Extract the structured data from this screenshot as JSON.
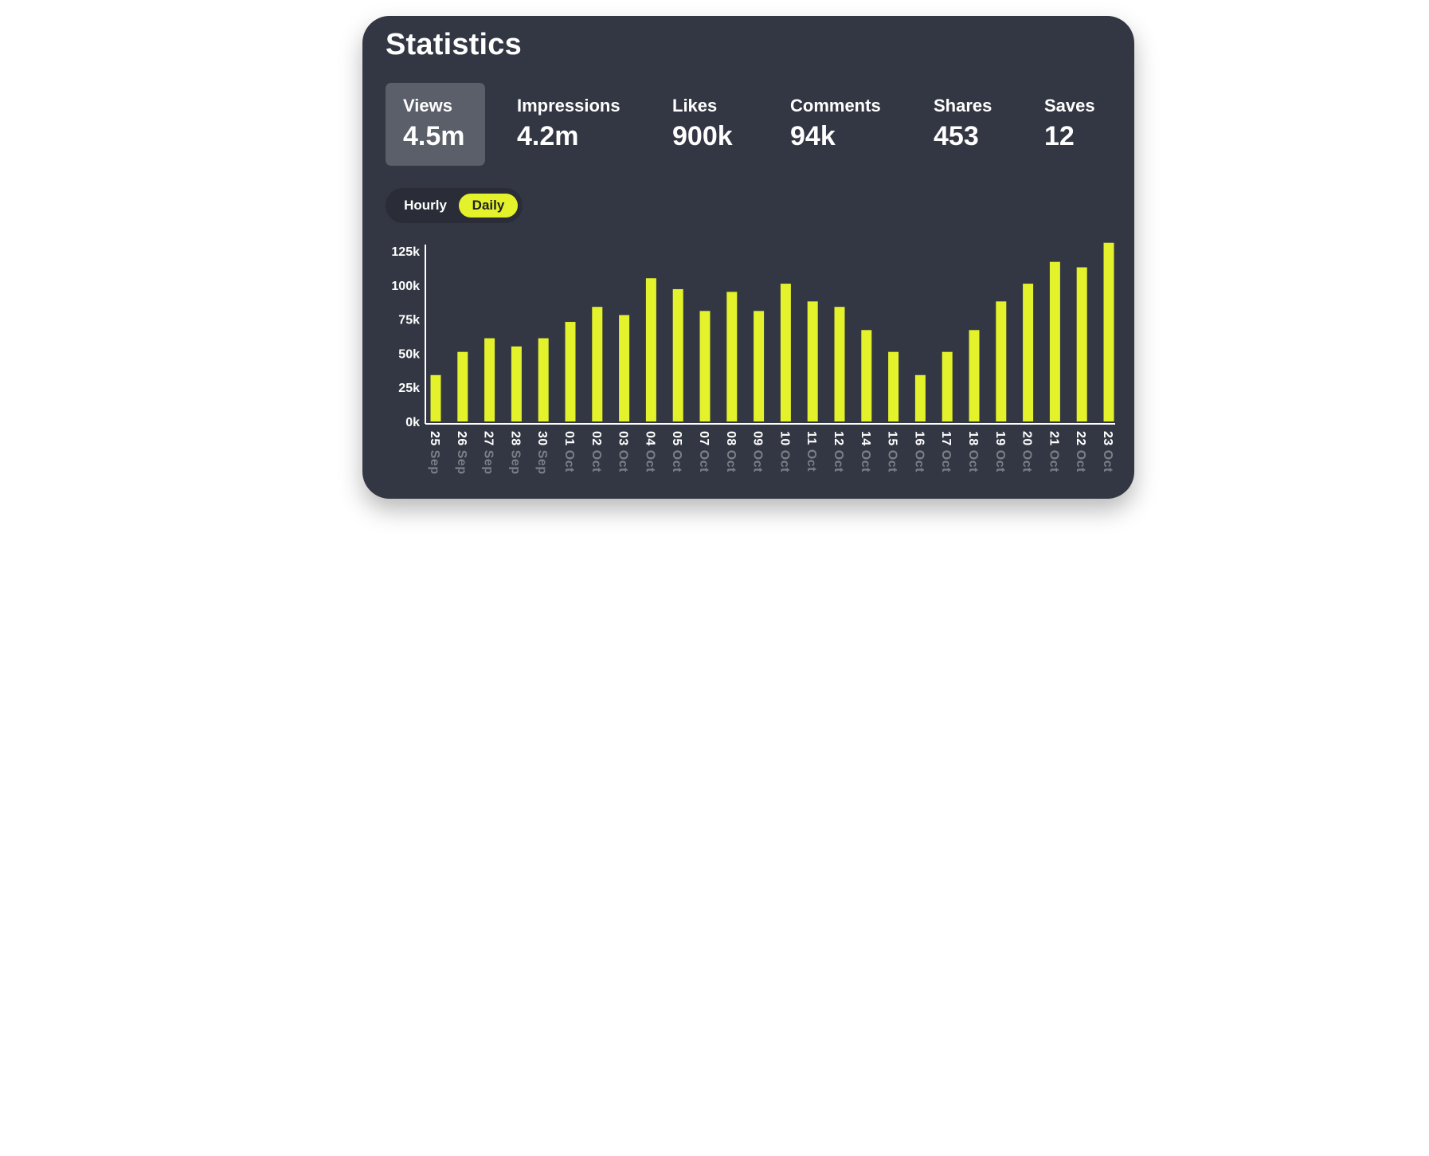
{
  "card": {
    "title": "Statistics"
  },
  "metrics": [
    {
      "label": "Views",
      "value": "4.5m",
      "active": true
    },
    {
      "label": "Impressions",
      "value": "4.2m",
      "active": false
    },
    {
      "label": "Likes",
      "value": "900k",
      "active": false
    },
    {
      "label": "Comments",
      "value": "94k",
      "active": false
    },
    {
      "label": "Shares",
      "value": "453",
      "active": false
    },
    {
      "label": "Saves",
      "value": "12",
      "active": false
    }
  ],
  "toggle": {
    "options": [
      "Hourly",
      "Daily"
    ],
    "selected": "Daily"
  },
  "colors": {
    "card_background": "#333743",
    "bar": "#e3f22a",
    "active_metric": "#5b5f6a",
    "month_label": "#7b7f88"
  },
  "chart_data": {
    "type": "bar",
    "categories": [
      {
        "day": "25",
        "month": "Sep"
      },
      {
        "day": "26",
        "month": "Sep"
      },
      {
        "day": "27",
        "month": "Sep"
      },
      {
        "day": "28",
        "month": "Sep"
      },
      {
        "day": "30",
        "month": "Sep"
      },
      {
        "day": "01",
        "month": "Oct"
      },
      {
        "day": "02",
        "month": "Oct"
      },
      {
        "day": "03",
        "month": "Oct"
      },
      {
        "day": "04",
        "month": "Oct"
      },
      {
        "day": "05",
        "month": "Oct"
      },
      {
        "day": "07",
        "month": "Oct"
      },
      {
        "day": "08",
        "month": "Oct"
      },
      {
        "day": "09",
        "month": "Oct"
      },
      {
        "day": "10",
        "month": "Oct"
      },
      {
        "day": "11",
        "month": "Oct"
      },
      {
        "day": "12",
        "month": "Oct"
      },
      {
        "day": "14",
        "month": "Oct"
      },
      {
        "day": "15",
        "month": "Oct"
      },
      {
        "day": "16",
        "month": "Oct"
      },
      {
        "day": "17",
        "month": "Oct"
      },
      {
        "day": "18",
        "month": "Oct"
      },
      {
        "day": "19",
        "month": "Oct"
      },
      {
        "day": "20",
        "month": "Oct"
      },
      {
        "day": "21",
        "month": "Oct"
      },
      {
        "day": "22",
        "month": "Oct"
      },
      {
        "day": "23",
        "month": "Oct"
      }
    ],
    "values": [
      34000,
      51000,
      61000,
      55000,
      61000,
      73000,
      84000,
      78000,
      105000,
      97000,
      81000,
      95000,
      81000,
      101000,
      88000,
      84000,
      67000,
      51000,
      34000,
      51000,
      67000,
      88000,
      101000,
      117000,
      113000,
      131000
    ],
    "y_ticks": [
      "0k",
      "25k",
      "50k",
      "75k",
      "100k",
      "125k"
    ],
    "y_tick_values": [
      0,
      25000,
      50000,
      75000,
      100000,
      125000
    ],
    "ylim": [
      0,
      125000
    ],
    "title": "",
    "xlabel": "",
    "ylabel": "",
    "grid": false,
    "legend": "none"
  }
}
